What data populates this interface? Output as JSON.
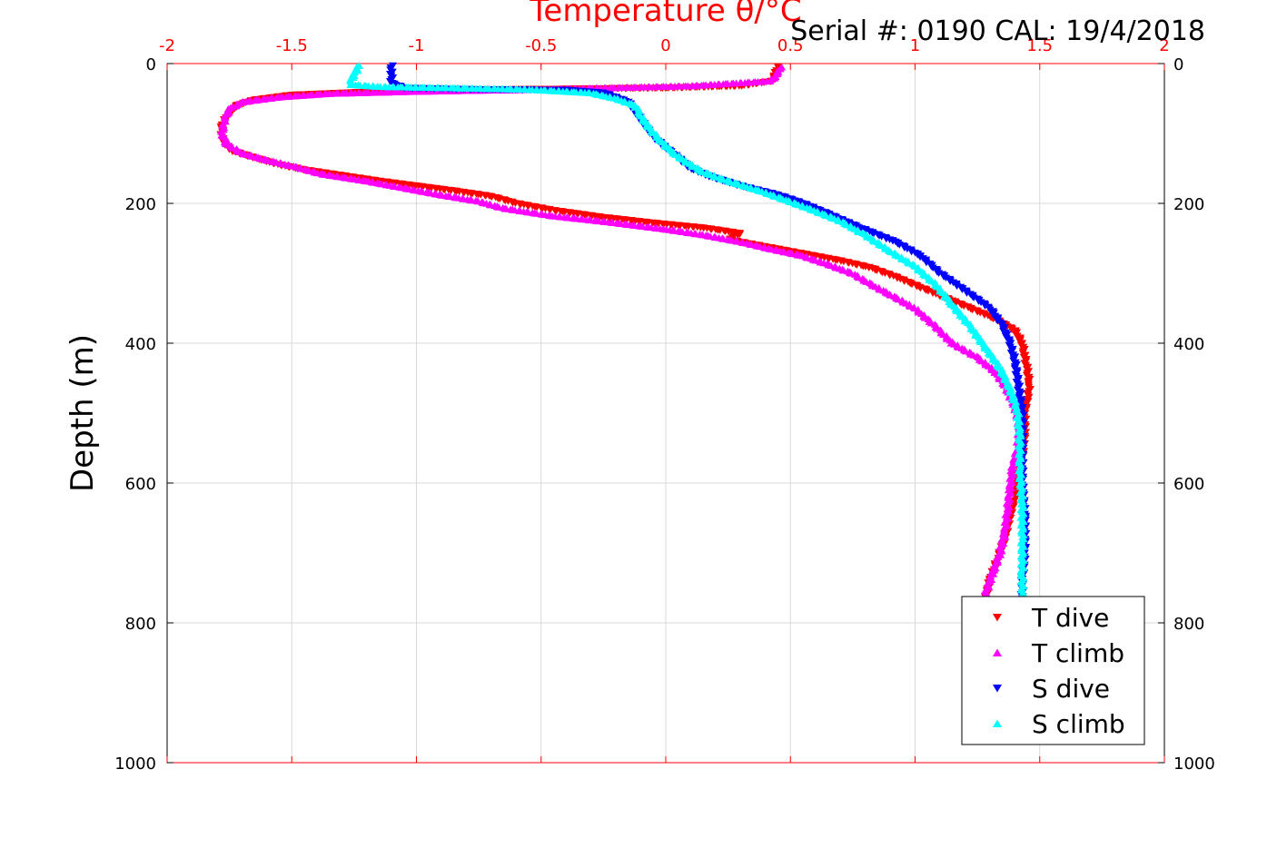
{
  "chart_data": {
    "type": "scatter",
    "title": "Serial #: 0190  CAL: 19/4/2018",
    "xlabel": "Temperature θ/°C",
    "ylabel": "Depth (m)",
    "xlim": [
      -2,
      2
    ],
    "ylim": [
      0,
      1000
    ],
    "y_reversed": true,
    "x_axis_position": "top",
    "x_ticks": [
      "-2",
      "-1.5",
      "-1",
      "-0.5",
      "0",
      "0.5",
      "1",
      "1.5",
      "2"
    ],
    "y_ticks": [
      "0",
      "200",
      "400",
      "600",
      "800",
      "1000"
    ],
    "grid": true,
    "legend_position": "bottom-right",
    "series": [
      {
        "name": "T dive",
        "color": "#ff0000",
        "marker": "triangle-down",
        "points": [
          [
            0.45,
            5
          ],
          [
            0.44,
            15
          ],
          [
            0.43,
            25
          ],
          [
            0.3,
            32
          ],
          [
            0.0,
            35
          ],
          [
            -0.6,
            37
          ],
          [
            -1.0,
            38
          ],
          [
            -1.15,
            40
          ],
          [
            -1.5,
            45
          ],
          [
            -1.65,
            52
          ],
          [
            -1.72,
            60
          ],
          [
            -1.76,
            75
          ],
          [
            -1.78,
            90
          ],
          [
            -1.78,
            110
          ],
          [
            -1.74,
            125
          ],
          [
            -1.65,
            135
          ],
          [
            -1.55,
            145
          ],
          [
            -1.45,
            152
          ],
          [
            -1.3,
            160
          ],
          [
            -1.15,
            168
          ],
          [
            -1.0,
            175
          ],
          [
            -0.85,
            182
          ],
          [
            -0.7,
            190
          ],
          [
            -0.6,
            200
          ],
          [
            -0.45,
            210
          ],
          [
            -0.25,
            220
          ],
          [
            -0.05,
            228
          ],
          [
            0.15,
            235
          ],
          [
            0.3,
            243
          ],
          [
            0.25,
            252
          ],
          [
            0.4,
            262
          ],
          [
            0.55,
            272
          ],
          [
            0.7,
            282
          ],
          [
            0.82,
            292
          ],
          [
            0.92,
            305
          ],
          [
            1.02,
            320
          ],
          [
            1.12,
            335
          ],
          [
            1.22,
            350
          ],
          [
            1.32,
            365
          ],
          [
            1.4,
            382
          ],
          [
            1.43,
            400
          ],
          [
            1.44,
            420
          ],
          [
            1.45,
            440
          ],
          [
            1.46,
            460
          ],
          [
            1.45,
            480
          ],
          [
            1.44,
            500
          ],
          [
            1.44,
            530
          ],
          [
            1.43,
            560
          ],
          [
            1.41,
            590
          ],
          [
            1.4,
            620
          ],
          [
            1.38,
            650
          ],
          [
            1.36,
            680
          ],
          [
            1.33,
            710
          ],
          [
            1.3,
            740
          ],
          [
            1.28,
            770
          ]
        ]
      },
      {
        "name": "T climb",
        "color": "#ff00ff",
        "marker": "triangle-up",
        "points": [
          [
            0.46,
            5
          ],
          [
            0.45,
            15
          ],
          [
            0.42,
            25
          ],
          [
            0.1,
            32
          ],
          [
            -0.5,
            37
          ],
          [
            -1.0,
            40
          ],
          [
            -1.35,
            43
          ],
          [
            -1.55,
            48
          ],
          [
            -1.7,
            55
          ],
          [
            -1.75,
            65
          ],
          [
            -1.77,
            80
          ],
          [
            -1.78,
            100
          ],
          [
            -1.76,
            115
          ],
          [
            -1.7,
            128
          ],
          [
            -1.6,
            138
          ],
          [
            -1.48,
            148
          ],
          [
            -1.38,
            158
          ],
          [
            -1.2,
            168
          ],
          [
            -1.05,
            178
          ],
          [
            -0.9,
            188
          ],
          [
            -0.75,
            197
          ],
          [
            -0.65,
            207
          ],
          [
            -0.45,
            218
          ],
          [
            -0.2,
            228
          ],
          [
            0.0,
            237
          ],
          [
            0.15,
            245
          ],
          [
            0.3,
            255
          ],
          [
            0.42,
            265
          ],
          [
            0.55,
            275
          ],
          [
            0.65,
            287
          ],
          [
            0.75,
            300
          ],
          [
            0.82,
            315
          ],
          [
            0.9,
            330
          ],
          [
            1.0,
            350
          ],
          [
            1.08,
            375
          ],
          [
            1.15,
            400
          ],
          [
            1.25,
            420
          ],
          [
            1.32,
            440
          ],
          [
            1.36,
            460
          ],
          [
            1.4,
            490
          ],
          [
            1.42,
            520
          ],
          [
            1.41,
            550
          ],
          [
            1.39,
            580
          ],
          [
            1.38,
            610
          ],
          [
            1.37,
            640
          ],
          [
            1.36,
            670
          ],
          [
            1.34,
            700
          ],
          [
            1.31,
            730
          ],
          [
            1.28,
            760
          ]
        ]
      },
      {
        "name": "S dive",
        "color": "#0000ff",
        "marker": "triangle-down",
        "points": [
          [
            -1.1,
            3
          ],
          [
            -1.1,
            15
          ],
          [
            -1.1,
            28
          ],
          [
            -1.05,
            35
          ],
          [
            -0.8,
            37
          ],
          [
            -0.4,
            38
          ],
          [
            -0.25,
            42
          ],
          [
            -0.15,
            55
          ],
          [
            -0.12,
            70
          ],
          [
            -0.08,
            90
          ],
          [
            -0.05,
            105
          ],
          [
            0.0,
            120
          ],
          [
            0.05,
            135
          ],
          [
            0.1,
            150
          ],
          [
            0.18,
            162
          ],
          [
            0.3,
            175
          ],
          [
            0.45,
            188
          ],
          [
            0.55,
            200
          ],
          [
            0.65,
            215
          ],
          [
            0.78,
            235
          ],
          [
            0.92,
            255
          ],
          [
            1.02,
            275
          ],
          [
            1.1,
            300
          ],
          [
            1.2,
            325
          ],
          [
            1.3,
            350
          ],
          [
            1.35,
            375
          ],
          [
            1.38,
            400
          ],
          [
            1.4,
            425
          ],
          [
            1.41,
            450
          ],
          [
            1.42,
            475
          ],
          [
            1.43,
            500
          ],
          [
            1.43,
            550
          ],
          [
            1.43,
            600
          ],
          [
            1.44,
            650
          ],
          [
            1.44,
            700
          ],
          [
            1.43,
            740
          ],
          [
            1.43,
            765
          ]
        ]
      },
      {
        "name": "S climb",
        "color": "#00ffff",
        "marker": "triangle-up",
        "points": [
          [
            -1.23,
            3
          ],
          [
            -1.25,
            15
          ],
          [
            -1.27,
            30
          ],
          [
            -1.15,
            33
          ],
          [
            -0.85,
            35
          ],
          [
            -0.55,
            37
          ],
          [
            -0.3,
            42
          ],
          [
            -0.2,
            50
          ],
          [
            -0.12,
            60
          ],
          [
            -0.1,
            75
          ],
          [
            -0.06,
            95
          ],
          [
            -0.02,
            110
          ],
          [
            0.02,
            125
          ],
          [
            0.08,
            140
          ],
          [
            0.15,
            155
          ],
          [
            0.25,
            168
          ],
          [
            0.38,
            182
          ],
          [
            0.48,
            195
          ],
          [
            0.58,
            208
          ],
          [
            0.7,
            225
          ],
          [
            0.8,
            245
          ],
          [
            0.9,
            268
          ],
          [
            1.0,
            290
          ],
          [
            1.08,
            315
          ],
          [
            1.15,
            345
          ],
          [
            1.22,
            375
          ],
          [
            1.28,
            405
          ],
          [
            1.34,
            435
          ],
          [
            1.38,
            465
          ],
          [
            1.41,
            495
          ],
          [
            1.42,
            530
          ],
          [
            1.42,
            580
          ],
          [
            1.43,
            630
          ],
          [
            1.43,
            680
          ],
          [
            1.43,
            730
          ],
          [
            1.43,
            765
          ]
        ]
      }
    ]
  }
}
